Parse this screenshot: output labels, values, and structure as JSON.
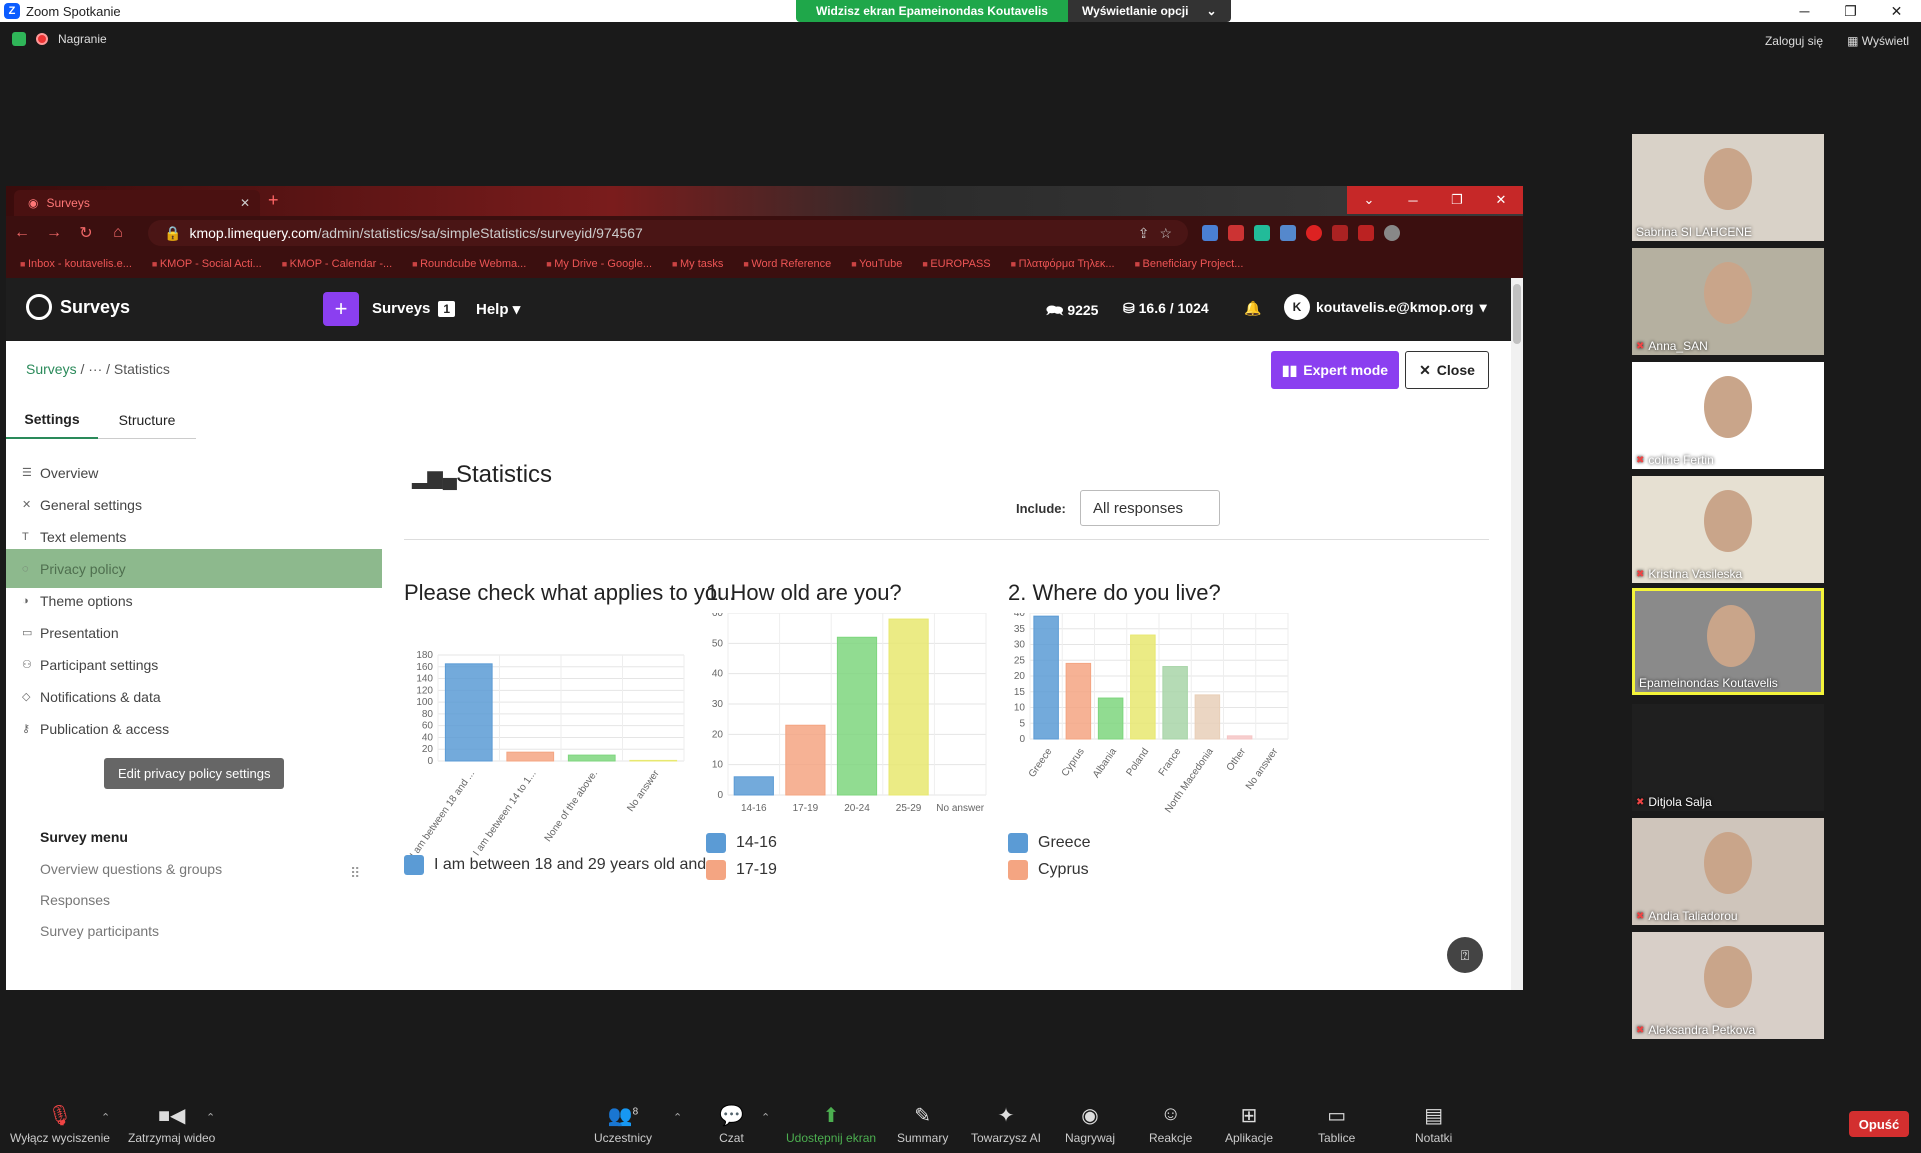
{
  "zoom": {
    "window_title": "Zoom Spotkanie",
    "share_banner": "Widzisz ekran Epameinondas Koutavelis",
    "share_options": "Wyświetlanie opcji",
    "recording": "Nagranie",
    "login": "Zaloguj się",
    "view": "Wyświetl"
  },
  "browser": {
    "tab_title": "Surveys",
    "url_host": "kmop.limequery.com",
    "url_path": "/admin/statistics/sa/simpleStatistics/surveyid/974567",
    "bookmarks": [
      "Inbox - koutavelis.e...",
      "KMOP - Social Acti...",
      "KMOP - Calendar -...",
      "Roundcube Webma...",
      "My Drive - Google...",
      "My tasks",
      "Word Reference",
      "YouTube",
      "EUROPASS",
      "Πλατφόρμα Τηλεκ...",
      "Beneficiary Project..."
    ]
  },
  "ls": {
    "brand": "Surveys",
    "nav_surveys": "Surveys",
    "nav_surveys_count": "1",
    "nav_help": "Help",
    "stat_responses": "9225",
    "stat_storage": "16.6 / 1024",
    "user_initial": "K",
    "user_email": "koutavelis.e@kmop.org",
    "crumb_root": "Surveys",
    "crumb_mid": "···",
    "crumb_current": "Statistics",
    "expert_mode": "Expert mode",
    "close": "Close",
    "tab_settings": "Settings",
    "tab_structure": "Structure",
    "sidebar": [
      "Overview",
      "General settings",
      "Text elements",
      "Privacy policy",
      "Theme options",
      "Presentation",
      "Participant settings",
      "Notifications & data",
      "Publication & access"
    ],
    "tooltip": "Edit privacy policy settings",
    "survey_menu_title": "Survey menu",
    "survey_menu": [
      "Overview questions & groups",
      "Responses",
      "Survey participants"
    ],
    "stats_title": "Statistics",
    "include_label": "Include:",
    "include_value": "All responses"
  },
  "chart_data": [
    {
      "type": "bar",
      "title": "Please check what applies to you.",
      "categories": [
        "I am between 18 and ...",
        "I am between 14 to 1...",
        "None of the above.",
        "No answer"
      ],
      "values": [
        165,
        15,
        10,
        1
      ],
      "ylim": [
        0,
        180
      ],
      "yticks": [
        0,
        20,
        40,
        60,
        80,
        100,
        120,
        140,
        160,
        180
      ],
      "colors": [
        "#5b9bd5",
        "#f4a582",
        "#7ed67e",
        "#e8e870"
      ],
      "legend": [
        "I am between 18 and 29 years old and"
      ]
    },
    {
      "type": "bar",
      "title": "1. How old are you?",
      "categories": [
        "14-16",
        "17-19",
        "20-24",
        "25-29",
        "No answer"
      ],
      "values": [
        6,
        23,
        52,
        58,
        0
      ],
      "ylim": [
        0,
        60
      ],
      "yticks": [
        0,
        10,
        20,
        30,
        40,
        50,
        60
      ],
      "colors": [
        "#5b9bd5",
        "#f4a582",
        "#7ed67e",
        "#e8e870",
        "#cccccc"
      ],
      "legend": [
        "14-16",
        "17-19"
      ]
    },
    {
      "type": "bar",
      "title": "2. Where do you live?",
      "categories": [
        "Greece",
        "Cyprus",
        "Albania",
        "Poland",
        "France",
        "North Macedonia",
        "Other",
        "No answer"
      ],
      "values": [
        39,
        24,
        13,
        33,
        23,
        14,
        1,
        0
      ],
      "ylim": [
        0,
        40
      ],
      "yticks": [
        0,
        5,
        10,
        15,
        20,
        25,
        30,
        35,
        40
      ],
      "colors": [
        "#5b9bd5",
        "#f4a582",
        "#7ed67e",
        "#e8e870",
        "#a8d5a8",
        "#e8cfb8",
        "#f6c6c6",
        "#cccccc"
      ],
      "legend": [
        "Greece",
        "Cyprus"
      ]
    }
  ],
  "participants": [
    {
      "name": "Sabrina SI LAHCENE",
      "muted": false,
      "bg": "#d9d2c8"
    },
    {
      "name": "Anna_SAN",
      "muted": true,
      "bg": "#b5b0a0"
    },
    {
      "name": "coline Fertin",
      "muted": true,
      "bg": "#ffffff"
    },
    {
      "name": "Kristina Vasileska",
      "muted": true,
      "bg": "#e6e0d2"
    },
    {
      "name": "Epameinondas Koutavelis",
      "muted": false,
      "bg": "#8a8a8a"
    },
    {
      "name": "Ditjola Salja",
      "muted": true,
      "bg": "#1f1f1f"
    },
    {
      "name": "Andia Taliadorou",
      "muted": true,
      "bg": "#cfc5bb"
    },
    {
      "name": "Aleksandra Petkova",
      "muted": true,
      "bg": "#d8cfc8"
    }
  ],
  "toolbar": {
    "mute": "Wyłącz wyciszenie",
    "video": "Zatrzymaj wideo",
    "participants": "Uczestnicy",
    "participants_count": "8",
    "chat": "Czat",
    "share": "Udostępnij ekran",
    "summary": "Summary",
    "ai": "Towarzysz AI",
    "record": "Nagrywaj",
    "reactions": "Reakcje",
    "apps": "Aplikacje",
    "whiteboards": "Tablice",
    "notes": "Notatki",
    "leave": "Opuść"
  }
}
